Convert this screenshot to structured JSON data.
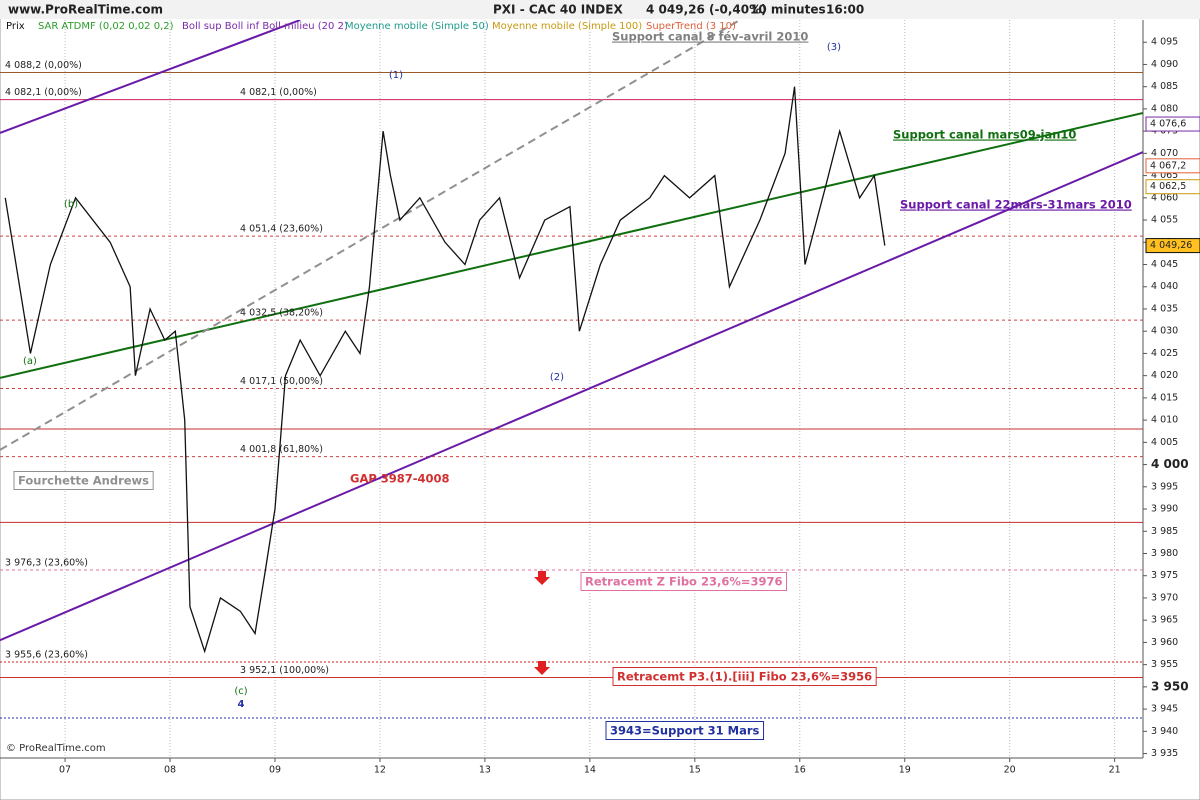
{
  "chart_data": {
    "type": "line",
    "site": "www.ProRealTime.com",
    "title": "PXI - CAC 40 INDEX",
    "quote": "4 049,26 (-0,40%)",
    "interval": "10 minutes",
    "time": "16:00",
    "copyright": "© ProRealTime.com",
    "indicators": [
      {
        "name": "SAR ATDMF (0,02 0,02 0,2)",
        "color": "#2a9d2a"
      },
      {
        "name": "Boll sup Boll inf Boll milieu (20 2)",
        "color": "#7a2aa8"
      },
      {
        "name": "Moyenne mobile (Simple 50)",
        "color": "#1f9c8a"
      },
      {
        "name": "Moyenne mobile (Simple 100)",
        "color": "#c89a10"
      },
      {
        "name": "SuperTrend (3 10)",
        "color": "#e0603a"
      }
    ],
    "x": [
      -0.57,
      -0.33,
      -0.14,
      0.1,
      0.43,
      0.62,
      0.67,
      0.81,
      0.95,
      1.05,
      1.14,
      1.19,
      1.33,
      1.48,
      1.67,
      1.81,
      1.9,
      2.0,
      2.1,
      2.24,
      2.43,
      2.67,
      2.81,
      2.9,
      3.03,
      3.1,
      3.19,
      3.38,
      3.62,
      3.81,
      3.95,
      4.14,
      4.33,
      4.57,
      4.81,
      4.9,
      5.1,
      5.29,
      5.57,
      5.71,
      5.95,
      6.19,
      6.33,
      6.62,
      6.86,
      6.95,
      7.05,
      7.24,
      7.38,
      7.57,
      7.71,
      7.81
    ],
    "series": [
      {
        "name": "Prix",
        "color": "#111111",
        "values": [
          4060,
          4025,
          4045,
          4060,
          4050,
          4040,
          4020,
          4035,
          4028,
          4030,
          4010,
          3968,
          3958,
          3970,
          3967,
          3962,
          3975,
          3990,
          4020,
          4028,
          4020,
          4030,
          4025,
          4040,
          4075,
          4065,
          4055,
          4060,
          4050,
          4045,
          4055,
          4060,
          4042,
          4055,
          4058,
          4030,
          4045,
          4055,
          4060,
          4065,
          4060,
          4065,
          4040,
          4055,
          4070,
          4085,
          4045,
          4062,
          4075,
          4060,
          4065,
          4049.26
        ]
      }
    ],
    "xlim": [
      -0.62,
      10.27
    ],
    "xticks": [
      {
        "value": 0,
        "label": "07"
      },
      {
        "value": 1,
        "label": "08"
      },
      {
        "value": 2,
        "label": "09"
      },
      {
        "value": 3,
        "label": "12"
      },
      {
        "value": 4,
        "label": "13"
      },
      {
        "value": 5,
        "label": "14"
      },
      {
        "value": 6,
        "label": "15"
      },
      {
        "value": 7,
        "label": "16"
      },
      {
        "value": 8,
        "label": "19"
      },
      {
        "value": 9,
        "label": "20"
      },
      {
        "value": 10,
        "label": "21"
      }
    ],
    "ylim": [
      3934,
      4100
    ],
    "yticks": [
      {
        "value": 3935,
        "label": "3 935"
      },
      {
        "value": 3940,
        "label": "3 940"
      },
      {
        "value": 3945,
        "label": "3 945"
      },
      {
        "value": 3950,
        "label": "3 950",
        "bold": true
      },
      {
        "value": 3955,
        "label": "3 955"
      },
      {
        "value": 3960,
        "label": "3 960"
      },
      {
        "value": 3965,
        "label": "3 965"
      },
      {
        "value": 3970,
        "label": "3 970"
      },
      {
        "value": 3975,
        "label": "3 975"
      },
      {
        "value": 3980,
        "label": "3 980"
      },
      {
        "value": 3985,
        "label": "3 985"
      },
      {
        "value": 3990,
        "label": "3 990"
      },
      {
        "value": 3995,
        "label": "3 995"
      },
      {
        "value": 4000,
        "label": "4 000",
        "bold": true
      },
      {
        "value": 4005,
        "label": "4 005"
      },
      {
        "value": 4010,
        "label": "4 010"
      },
      {
        "value": 4015,
        "label": "4 015"
      },
      {
        "value": 4020,
        "label": "4 020"
      },
      {
        "value": 4025,
        "label": "4 025"
      },
      {
        "value": 4030,
        "label": "4 030"
      },
      {
        "value": 4035,
        "label": "4 035"
      },
      {
        "value": 4040,
        "label": "4 040"
      },
      {
        "value": 4045,
        "label": "4 045"
      },
      {
        "value": 4050,
        "label": "4 050"
      },
      {
        "value": 4055,
        "label": "4 055"
      },
      {
        "value": 4060,
        "label": "4 060"
      },
      {
        "value": 4065,
        "label": "4 065"
      },
      {
        "value": 4070,
        "label": "4 070"
      },
      {
        "value": 4075,
        "label": "4 075"
      },
      {
        "value": 4080,
        "label": "4 080"
      },
      {
        "value": 4085,
        "label": "4 085"
      },
      {
        "value": 4090,
        "label": "4 090"
      },
      {
        "value": 4095,
        "label": "4 095"
      }
    ],
    "levels": [
      {
        "value": 4088.2,
        "label": "4 088,2 (0,00%)",
        "color": "#9a5a2a",
        "dash": "none"
      },
      {
        "value": 4082.1,
        "label": "4 082,1 (0,00%)",
        "color": "#d0205a",
        "dash": "none"
      },
      {
        "value": 4051.4,
        "label": "4 051,4 (23,60%)",
        "color": "#d04040",
        "dash": "3,3"
      },
      {
        "value": 4032.5,
        "label": "4 032,5 (38,20%)",
        "color": "#d04040",
        "dash": "3,3"
      },
      {
        "value": 4017.1,
        "label": "4 017,1 (50,00%)",
        "color": "#d04040",
        "dash": "3,3"
      },
      {
        "value": 4008,
        "color": "#c03030",
        "dash": "none"
      },
      {
        "value": 4001.8,
        "label": "4 001,8 (61,80%)",
        "color": "#d04040",
        "dash": "3,3"
      },
      {
        "value": 3987,
        "color": "#c03030",
        "dash": "none"
      },
      {
        "value": 3976.3,
        "label": "3 976,3 (23,60%)",
        "color": "#e070a0",
        "dash": "3,3"
      },
      {
        "value": 3955.6,
        "label": "3 955,6 (23,60%)",
        "color": "#d02020",
        "dash": "2,2"
      },
      {
        "value": 3952.1,
        "label": "3 952,1 (100,00%)",
        "color": "#d03030",
        "dash": "none"
      },
      {
        "value": 3943,
        "color": "#2030a0",
        "dash": "2,2"
      }
    ],
    "trendlines": [
      {
        "x": [
          -0.62,
          10.27
        ],
        "y": [
          4019.5,
          4079.1
        ],
        "color": "#107010"
      },
      {
        "x": [
          -0.62,
          10.27
        ],
        "y": [
          3960.5,
          4070.3
        ],
        "color": "#6a1aa8"
      },
      {
        "x": [
          -0.62,
          2.24
        ],
        "y": [
          4074.6,
          4100
        ],
        "color": "#6a1aa8"
      },
      {
        "x": [
          -0.62,
          6.43
        ],
        "y": [
          4003.3,
          4100
        ],
        "color": "#909090",
        "dash": "8,5"
      }
    ],
    "tags": [
      {
        "value": 4076.6,
        "label": "4 076,6",
        "color": "#7a2aa8",
        "bg": "#ffffff"
      },
      {
        "value": 4067.2,
        "label": "4 067,2",
        "color": "#e0603a",
        "bg": "#ffffff"
      },
      {
        "value": 4062.5,
        "label": "4 062,5",
        "color": "#c89a10",
        "bg": "#ffffff"
      },
      {
        "value": 4049.26,
        "label": "4 049,26",
        "color": "#111111",
        "bg": "#ffc020"
      }
    ],
    "annotations": [
      {
        "text": "Support canal 8 fév-avril 2010",
        "color": "#808080"
      },
      {
        "text": "Support canal mars09-jan10",
        "color": "#107010"
      },
      {
        "text": "Support canal 22mars-31mars 2010",
        "color": "#6a1aa8"
      },
      {
        "text": "Fourchette Andrews",
        "color": "#909090"
      },
      {
        "text": "GAP 3987-4008",
        "color": "#d03030"
      },
      {
        "text": "Retracemt Z Fibo 23,6%=3976",
        "color": "#e070a0"
      },
      {
        "text": "Retracemt P3.(1).[iii] Fibo 23,6%=3956",
        "color": "#d03030"
      },
      {
        "text": "3943=Support 31 Mars",
        "color": "#2030a0"
      }
    ],
    "waves": [
      {
        "text": "(a)",
        "color": "#107010"
      },
      {
        "text": "(b)",
        "color": "#107010"
      },
      {
        "text": "(1)",
        "color": "#2030a0"
      },
      {
        "text": "(2)",
        "color": "#2030a0"
      },
      {
        "text": "(3)",
        "color": "#2030a0"
      },
      {
        "text": "(c)",
        "color": "#107010"
      },
      {
        "text": "4",
        "color": "#2030a0"
      }
    ]
  }
}
